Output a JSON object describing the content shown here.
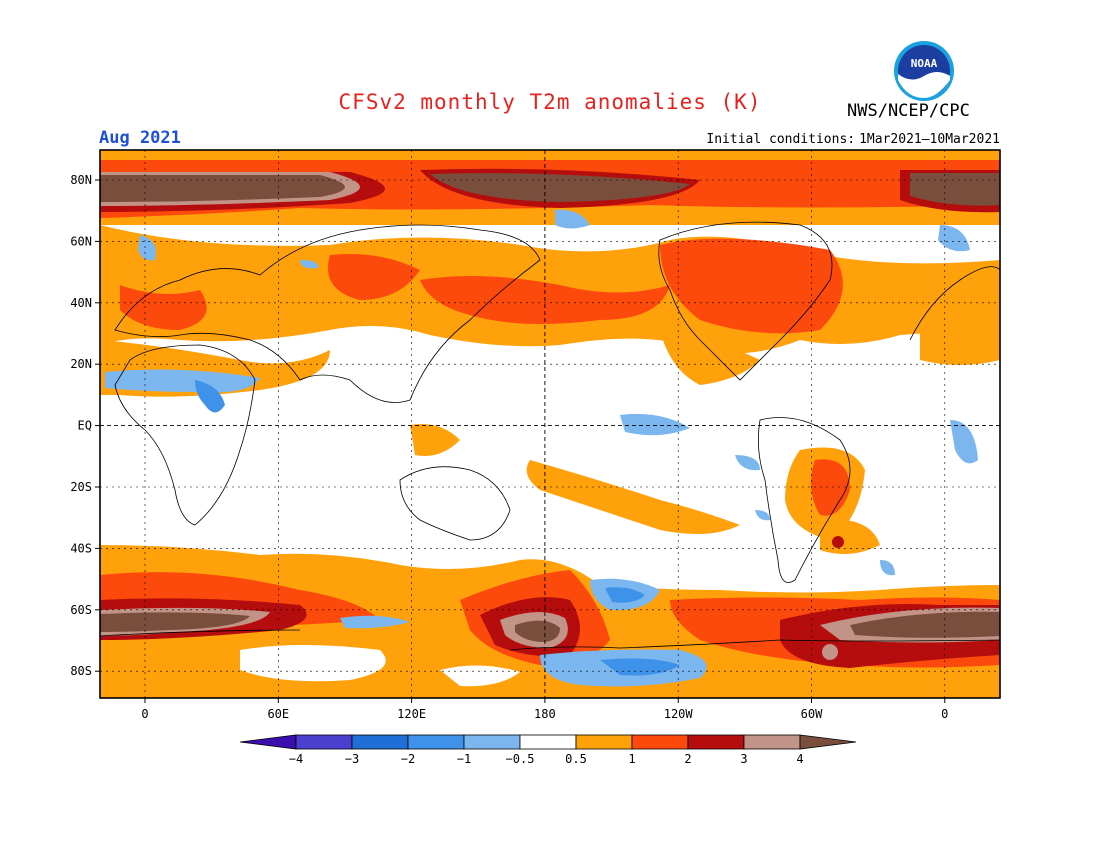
{
  "header": {
    "title": "CFSv2 monthly T2m anomalies (K)",
    "agency": "NWS/NCEP/CPC",
    "logo_text": "NOAA",
    "month": "Aug 2021",
    "initial_conditions_label": "Initial conditions:",
    "initial_conditions_value": "1Mar2021–10Mar2021"
  },
  "map": {
    "projection": "equirectangular",
    "lon_range": [
      -20,
      20
    ],
    "lat_range": [
      -90,
      90
    ],
    "lat_labels": [
      "80N",
      "60N",
      "40N",
      "20N",
      "EQ",
      "20S",
      "40S",
      "60S",
      "80S"
    ],
    "lon_labels": [
      "0",
      "60E",
      "120E",
      "180",
      "120W",
      "60W",
      "0"
    ]
  },
  "legend": {
    "ticks": [
      "-4",
      "-3",
      "-2",
      "-1",
      "-0.5",
      "0.5",
      "1",
      "2",
      "3",
      "4"
    ],
    "colors": [
      "#3a0fae",
      "#4b3fd0",
      "#1f6fd6",
      "#3f92ea",
      "#7bb7ee",
      "#ffffff",
      "#ffa10a",
      "#fc4a0c",
      "#b50d0d",
      "#c29387",
      "#7a4e3c"
    ]
  }
}
